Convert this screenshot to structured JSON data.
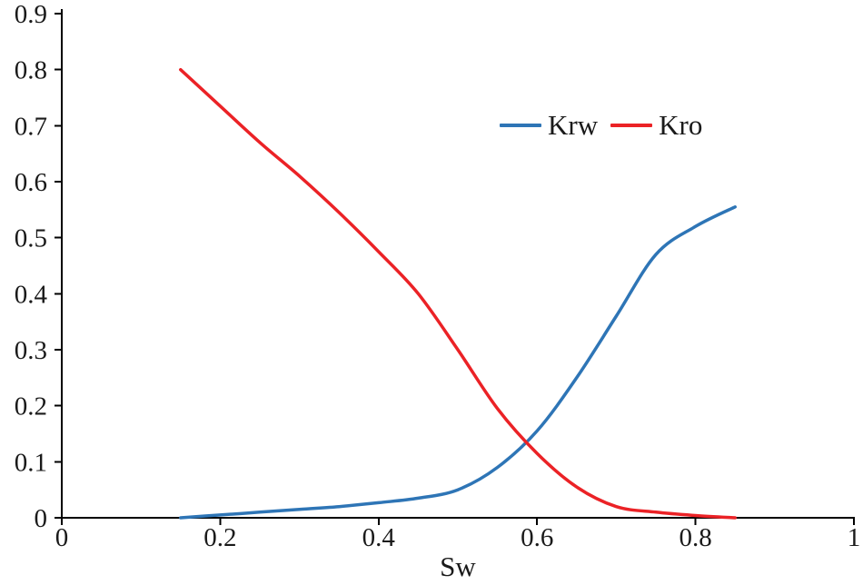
{
  "figure": {
    "background": "#ffffff",
    "axis_color": "#000000",
    "text_color": "#1a1a1a"
  },
  "chart_data": {
    "type": "line",
    "title": "",
    "xlabel": "Sw",
    "ylabel": "",
    "xlim": [
      0,
      1
    ],
    "ylim": [
      0,
      0.9
    ],
    "grid": false,
    "legend_position": "upper-center-right",
    "x_ticks": [
      {
        "value": 0,
        "label": "0"
      },
      {
        "value": 0.2,
        "label": "0.2"
      },
      {
        "value": 0.4,
        "label": "0.4"
      },
      {
        "value": 0.6,
        "label": "0.6"
      },
      {
        "value": 0.8,
        "label": "0.8"
      },
      {
        "value": 1,
        "label": "1"
      }
    ],
    "y_ticks": [
      {
        "value": 0,
        "label": "0"
      },
      {
        "value": 0.1,
        "label": "0.1"
      },
      {
        "value": 0.2,
        "label": "0.2"
      },
      {
        "value": 0.3,
        "label": "0.3"
      },
      {
        "value": 0.4,
        "label": "0.4"
      },
      {
        "value": 0.5,
        "label": "0.5"
      },
      {
        "value": 0.6,
        "label": "0.6"
      },
      {
        "value": 0.7,
        "label": "0.7"
      },
      {
        "value": 0.8,
        "label": "0.8"
      },
      {
        "value": 0.9,
        "label": "0.9"
      }
    ],
    "x": [
      0.15,
      0.2,
      0.25,
      0.3,
      0.35,
      0.4,
      0.45,
      0.5,
      0.55,
      0.6,
      0.65,
      0.7,
      0.75,
      0.8,
      0.85
    ],
    "series": [
      {
        "name": "Krw",
        "color": "#2e75b6",
        "values": [
          0.0,
          0.005,
          0.01,
          0.015,
          0.02,
          0.027,
          0.035,
          0.05,
          0.09,
          0.155,
          0.25,
          0.36,
          0.47,
          0.52,
          0.555
        ]
      },
      {
        "name": "Kro",
        "color": "#eb2226",
        "values": [
          0.8,
          0.735,
          0.67,
          0.61,
          0.545,
          0.475,
          0.4,
          0.3,
          0.195,
          0.115,
          0.055,
          0.02,
          0.01,
          0.004,
          0.0
        ]
      }
    ]
  }
}
